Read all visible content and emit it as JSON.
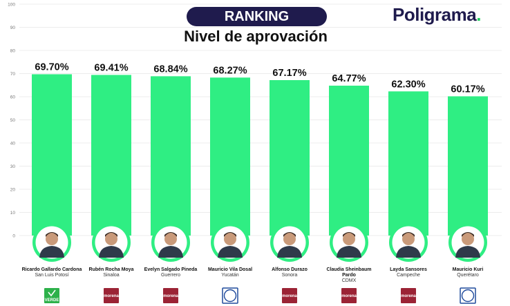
{
  "header": {
    "ranking": "RANKING",
    "subtitle": "Nivel de aprovación",
    "brand": "Poligrama",
    "brand_dot": "."
  },
  "colors": {
    "bar": "#2fee83",
    "pill": "#1f1b4d",
    "avatar_ring": "#2fee83",
    "morena": "#9b2335",
    "pan": "#1f4a9c",
    "verde": "#2db14a"
  },
  "chart_data": {
    "type": "bar",
    "title": "Nivel de aprovación",
    "ylim": [
      0,
      100
    ],
    "yticks": [
      0,
      10,
      20,
      30,
      40,
      50,
      60,
      70,
      80,
      90,
      100
    ],
    "grid": true,
    "categories": [
      "Ricardo Gallardo Cardona",
      "Rubén Rocha Moya",
      "Evelyn Salgado Pineda",
      "Mauricio Vila Dosal",
      "Alfonso Durazo",
      "Claudia Sheinbaum Pardo",
      "Layda Sansores",
      "Mauricio Kuri"
    ],
    "values": [
      69.7,
      69.41,
      68.84,
      68.27,
      67.17,
      64.77,
      62.3,
      60.17
    ],
    "value_labels": [
      "69.70%",
      "69.41%",
      "68.84%",
      "68.27%",
      "67.17%",
      "64.77%",
      "62.30%",
      "60.17%"
    ],
    "people": [
      {
        "name_lines": [
          "Ricardo Gallardo Cardona"
        ],
        "state": "San Luis Potosí",
        "party": "verde",
        "party_label": "VERDE",
        "avatar_icon": "person-photo-icon"
      },
      {
        "name_lines": [
          "Rubén Rocha Moya"
        ],
        "state": "Sinaloa",
        "party": "morena",
        "party_label": "morena",
        "avatar_icon": "person-photo-icon"
      },
      {
        "name_lines": [
          "Evelyn Salgado Pineda"
        ],
        "state": "Guerrero",
        "party": "morena",
        "party_label": "morena",
        "avatar_icon": "person-photo-icon"
      },
      {
        "name_lines": [
          "Mauricio Vila Dosal"
        ],
        "state": "Yucatán",
        "party": "pan",
        "party_label": "PAN",
        "avatar_icon": "person-photo-icon"
      },
      {
        "name_lines": [
          "Alfonso Durazo"
        ],
        "state": "Sonora",
        "party": "morena",
        "party_label": "morena",
        "avatar_icon": "person-photo-icon"
      },
      {
        "name_lines": [
          "Claudia Sheinbaum",
          "Pardo"
        ],
        "state": "CDMX",
        "party": "morena",
        "party_label": "morena",
        "avatar_icon": "person-photo-icon"
      },
      {
        "name_lines": [
          "Layda Sansores"
        ],
        "state": "Campeche",
        "party": "morena",
        "party_label": "morena",
        "avatar_icon": "person-photo-icon"
      },
      {
        "name_lines": [
          "Mauricio Kuri"
        ],
        "state": "Querétaro",
        "party": "pan",
        "party_label": "PAN",
        "avatar_icon": "person-photo-icon"
      }
    ]
  }
}
